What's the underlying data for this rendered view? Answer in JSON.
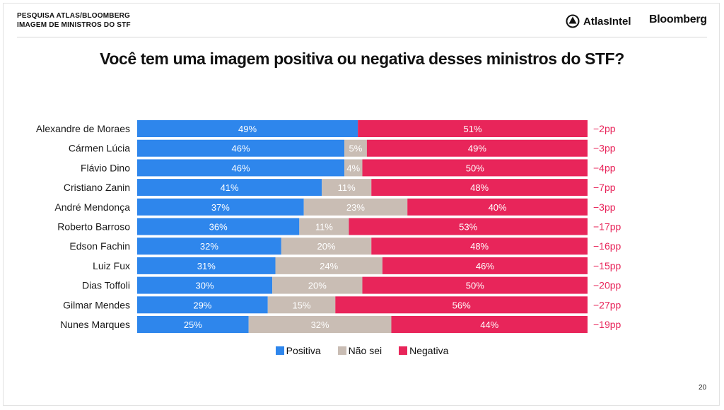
{
  "header": {
    "line1": "PESQUISA ATLAS/BLOOMBERG",
    "line2": "IMAGEM DE MINISTROS DO STF",
    "atlas_logo_text": "AtlasIntel",
    "bloomberg_logo_text": "Bloomberg"
  },
  "page_number": "20",
  "colors": {
    "positiva": "#2E86EC",
    "nao_sei": "#C9BDB4",
    "negativa": "#E8255A",
    "diff_text": "#E8255A"
  },
  "chart_data": {
    "type": "bar",
    "orientation": "horizontal",
    "stacked": true,
    "normalized_100": true,
    "title": "Você tem uma imagem positiva ou negativa desses ministros do STF?",
    "legend_position": "bottom",
    "categories": [
      "Alexandre de Moraes",
      "Cármen Lúcia",
      "Flávio Dino",
      "Cristiano Zanin",
      "André Mendonça",
      "Roberto Barroso",
      "Edson Fachin",
      "Luiz Fux",
      "Dias Toffoli",
      "Gilmar Mendes",
      "Nunes Marques"
    ],
    "series": [
      {
        "name": "Positiva",
        "values": [
          49,
          46,
          46,
          41,
          37,
          36,
          32,
          31,
          30,
          29,
          25
        ]
      },
      {
        "name": "Não sei",
        "values": [
          0,
          5,
          4,
          11,
          23,
          11,
          20,
          24,
          20,
          15,
          32
        ]
      },
      {
        "name": "Negativa",
        "values": [
          51,
          49,
          50,
          48,
          40,
          53,
          48,
          46,
          50,
          56,
          44
        ]
      }
    ],
    "data_labels": [
      [
        "49%",
        "",
        "51%"
      ],
      [
        "46%",
        "5%",
        "49%"
      ],
      [
        "46%",
        "4%",
        "50%"
      ],
      [
        "41%",
        "11%",
        "48%"
      ],
      [
        "37%",
        "23%",
        "40%"
      ],
      [
        "36%",
        "11%",
        "53%"
      ],
      [
        "32%",
        "20%",
        "48%"
      ],
      [
        "31%",
        "24%",
        "46%"
      ],
      [
        "30%",
        "20%",
        "50%"
      ],
      [
        "29%",
        "15%",
        "56%"
      ],
      [
        "25%",
        "32%",
        "44%"
      ]
    ],
    "net_labels": [
      "−2pp",
      "−3pp",
      "−4pp",
      "−7pp",
      "−3pp",
      "−17pp",
      "−16pp",
      "−15pp",
      "−20pp",
      "−27pp",
      "−19pp"
    ]
  }
}
